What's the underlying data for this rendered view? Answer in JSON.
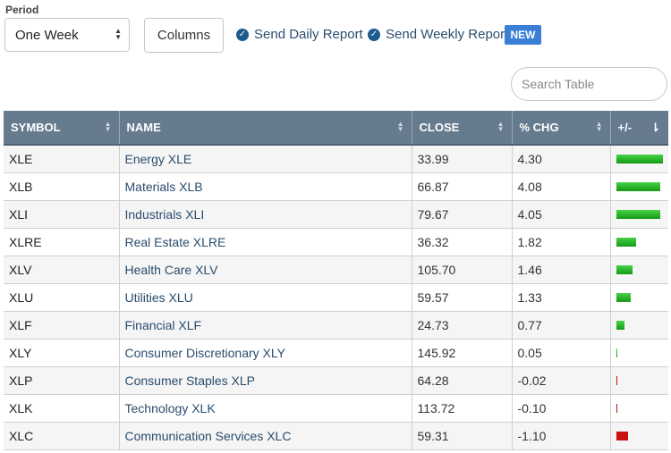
{
  "period": {
    "label": "Period",
    "selected": "One Week"
  },
  "columns_label": "Columns",
  "reports": {
    "daily": "Send Daily Report",
    "weekly": "Send Weekly Report",
    "new_badge": "NEW"
  },
  "search": {
    "placeholder": "Search Table"
  },
  "table": {
    "headers": [
      "SYMBOL",
      "NAME",
      "CLOSE",
      "% CHG",
      "+/-"
    ],
    "bar_colors": {
      "positive": "#22b622",
      "negative": "#cc1111"
    },
    "rows": [
      {
        "symbol": "XLE",
        "name": "Energy XLE",
        "close": "33.99",
        "chg": "4.30",
        "change": 4.3
      },
      {
        "symbol": "XLB",
        "name": "Materials XLB",
        "close": "66.87",
        "chg": "4.08",
        "change": 4.08
      },
      {
        "symbol": "XLI",
        "name": "Industrials XLI",
        "close": "79.67",
        "chg": "4.05",
        "change": 4.05
      },
      {
        "symbol": "XLRE",
        "name": "Real Estate XLRE",
        "close": "36.32",
        "chg": "1.82",
        "change": 1.82
      },
      {
        "symbol": "XLV",
        "name": "Health Care XLV",
        "close": "105.70",
        "chg": "1.46",
        "change": 1.46
      },
      {
        "symbol": "XLU",
        "name": "Utilities XLU",
        "close": "59.57",
        "chg": "1.33",
        "change": 1.33
      },
      {
        "symbol": "XLF",
        "name": "Financial XLF",
        "close": "24.73",
        "chg": "0.77",
        "change": 0.77
      },
      {
        "symbol": "XLY",
        "name": "Consumer Discretionary XLY",
        "close": "145.92",
        "chg": "0.05",
        "change": 0.05
      },
      {
        "symbol": "XLP",
        "name": "Consumer Staples XLP",
        "close": "64.28",
        "chg": "-0.02",
        "change": -0.02
      },
      {
        "symbol": "XLK",
        "name": "Technology XLK",
        "close": "113.72",
        "chg": "-0.10",
        "change": -0.1
      },
      {
        "symbol": "XLC",
        "name": "Communication Services XLC",
        "close": "59.31",
        "chg": "-1.10",
        "change": -1.1
      }
    ]
  }
}
